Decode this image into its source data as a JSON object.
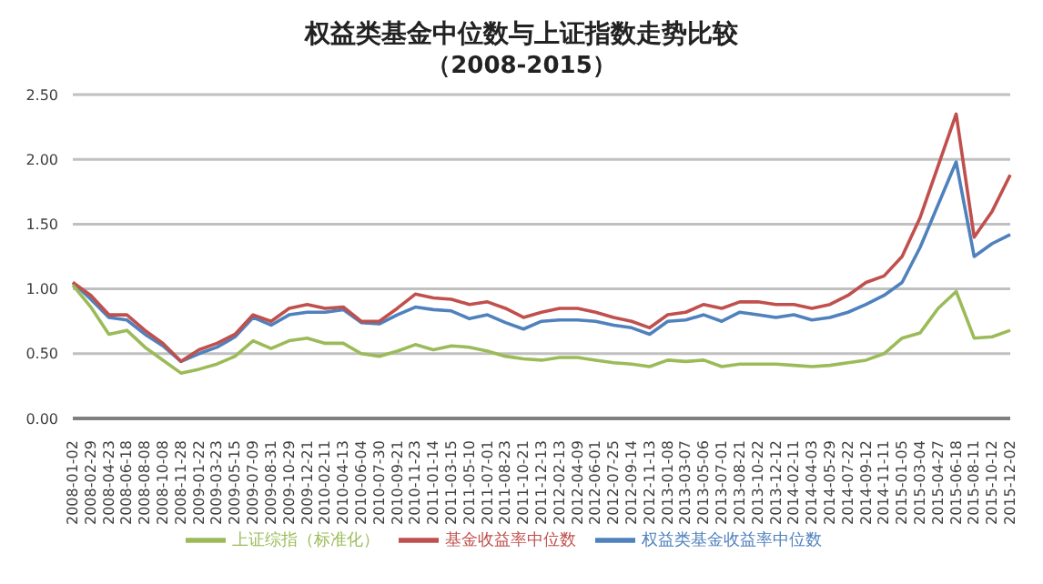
{
  "chart_data": {
    "type": "line",
    "title": "权益类基金中位数与上证指数走势比较",
    "subtitle": "（2008-2015）",
    "categories": [
      "2008-01-02",
      "2008-02-29",
      "2008-04-23",
      "2008-06-18",
      "2008-08-08",
      "2008-10-08",
      "2008-11-28",
      "2009-01-22",
      "2009-03-23",
      "2009-05-15",
      "2009-07-09",
      "2009-08-31",
      "2009-10-29",
      "2009-12-21",
      "2010-02-11",
      "2010-04-13",
      "2010-06-04",
      "2010-07-30",
      "2010-09-21",
      "2010-11-23",
      "2011-01-14",
      "2011-03-15",
      "2011-05-10",
      "2011-07-01",
      "2011-08-23",
      "2011-10-21",
      "2011-12-13",
      "2012-02-13",
      "2012-04-09",
      "2012-06-01",
      "2012-07-25",
      "2012-09-14",
      "2012-11-13",
      "2013-01-08",
      "2013-03-07",
      "2013-05-06",
      "2013-07-01",
      "2013-08-21",
      "2013-10-22",
      "2013-12-12",
      "2014-02-11",
      "2014-04-03",
      "2014-05-29",
      "2014-07-22",
      "2014-09-12",
      "2014-11-11",
      "2015-01-05",
      "2015-03-04",
      "2015-04-27",
      "2015-06-18",
      "2015-08-11",
      "2015-10-12",
      "2015-12-02"
    ],
    "series": [
      {
        "name": "权益类基金收益率中位数",
        "color": "#4f81bd",
        "values": [
          1.05,
          0.92,
          0.78,
          0.76,
          0.65,
          0.56,
          0.44,
          0.5,
          0.55,
          0.63,
          0.78,
          0.72,
          0.8,
          0.82,
          0.82,
          0.84,
          0.74,
          0.73,
          0.8,
          0.86,
          0.84,
          0.83,
          0.77,
          0.8,
          0.74,
          0.69,
          0.75,
          0.76,
          0.76,
          0.75,
          0.72,
          0.7,
          0.65,
          0.75,
          0.76,
          0.8,
          0.75,
          0.82,
          0.8,
          0.78,
          0.8,
          0.76,
          0.78,
          0.82,
          0.88,
          0.95,
          1.05,
          1.32,
          1.65,
          1.98,
          1.25,
          1.35,
          1.42
        ]
      },
      {
        "name": "基金收益率中位数",
        "color": "#c0504d",
        "values": [
          1.05,
          0.95,
          0.8,
          0.8,
          0.68,
          0.58,
          0.44,
          0.53,
          0.58,
          0.65,
          0.8,
          0.75,
          0.85,
          0.88,
          0.85,
          0.86,
          0.75,
          0.75,
          0.85,
          0.96,
          0.93,
          0.92,
          0.88,
          0.9,
          0.85,
          0.78,
          0.82,
          0.85,
          0.85,
          0.82,
          0.78,
          0.75,
          0.7,
          0.8,
          0.82,
          0.88,
          0.85,
          0.9,
          0.9,
          0.88,
          0.88,
          0.85,
          0.88,
          0.95,
          1.05,
          1.1,
          1.25,
          1.55,
          1.95,
          2.35,
          1.4,
          1.6,
          1.88
        ]
      },
      {
        "name": "上证综指（标准化）",
        "color": "#9bbb59",
        "values": [
          1.03,
          0.86,
          0.65,
          0.68,
          0.55,
          0.45,
          0.35,
          0.38,
          0.42,
          0.48,
          0.6,
          0.54,
          0.6,
          0.62,
          0.58,
          0.58,
          0.5,
          0.48,
          0.52,
          0.57,
          0.53,
          0.56,
          0.55,
          0.52,
          0.48,
          0.46,
          0.45,
          0.47,
          0.47,
          0.45,
          0.43,
          0.42,
          0.4,
          0.45,
          0.44,
          0.45,
          0.4,
          0.42,
          0.42,
          0.42,
          0.41,
          0.4,
          0.41,
          0.43,
          0.45,
          0.5,
          0.62,
          0.66,
          0.85,
          0.98,
          0.62,
          0.63,
          0.68
        ]
      }
    ],
    "ylim": [
      0,
      2.5
    ],
    "yticks": [
      {
        "value": 0,
        "label": "0.00"
      },
      {
        "value": 0.5,
        "label": "0.50"
      },
      {
        "value": 1,
        "label": "1.00"
      },
      {
        "value": 1.5,
        "label": "1.50"
      },
      {
        "value": 2,
        "label": "2.00"
      },
      {
        "value": 2.5,
        "label": "2.50"
      }
    ],
    "grid": "y",
    "legend": "bottom",
    "line_style": "solid"
  }
}
